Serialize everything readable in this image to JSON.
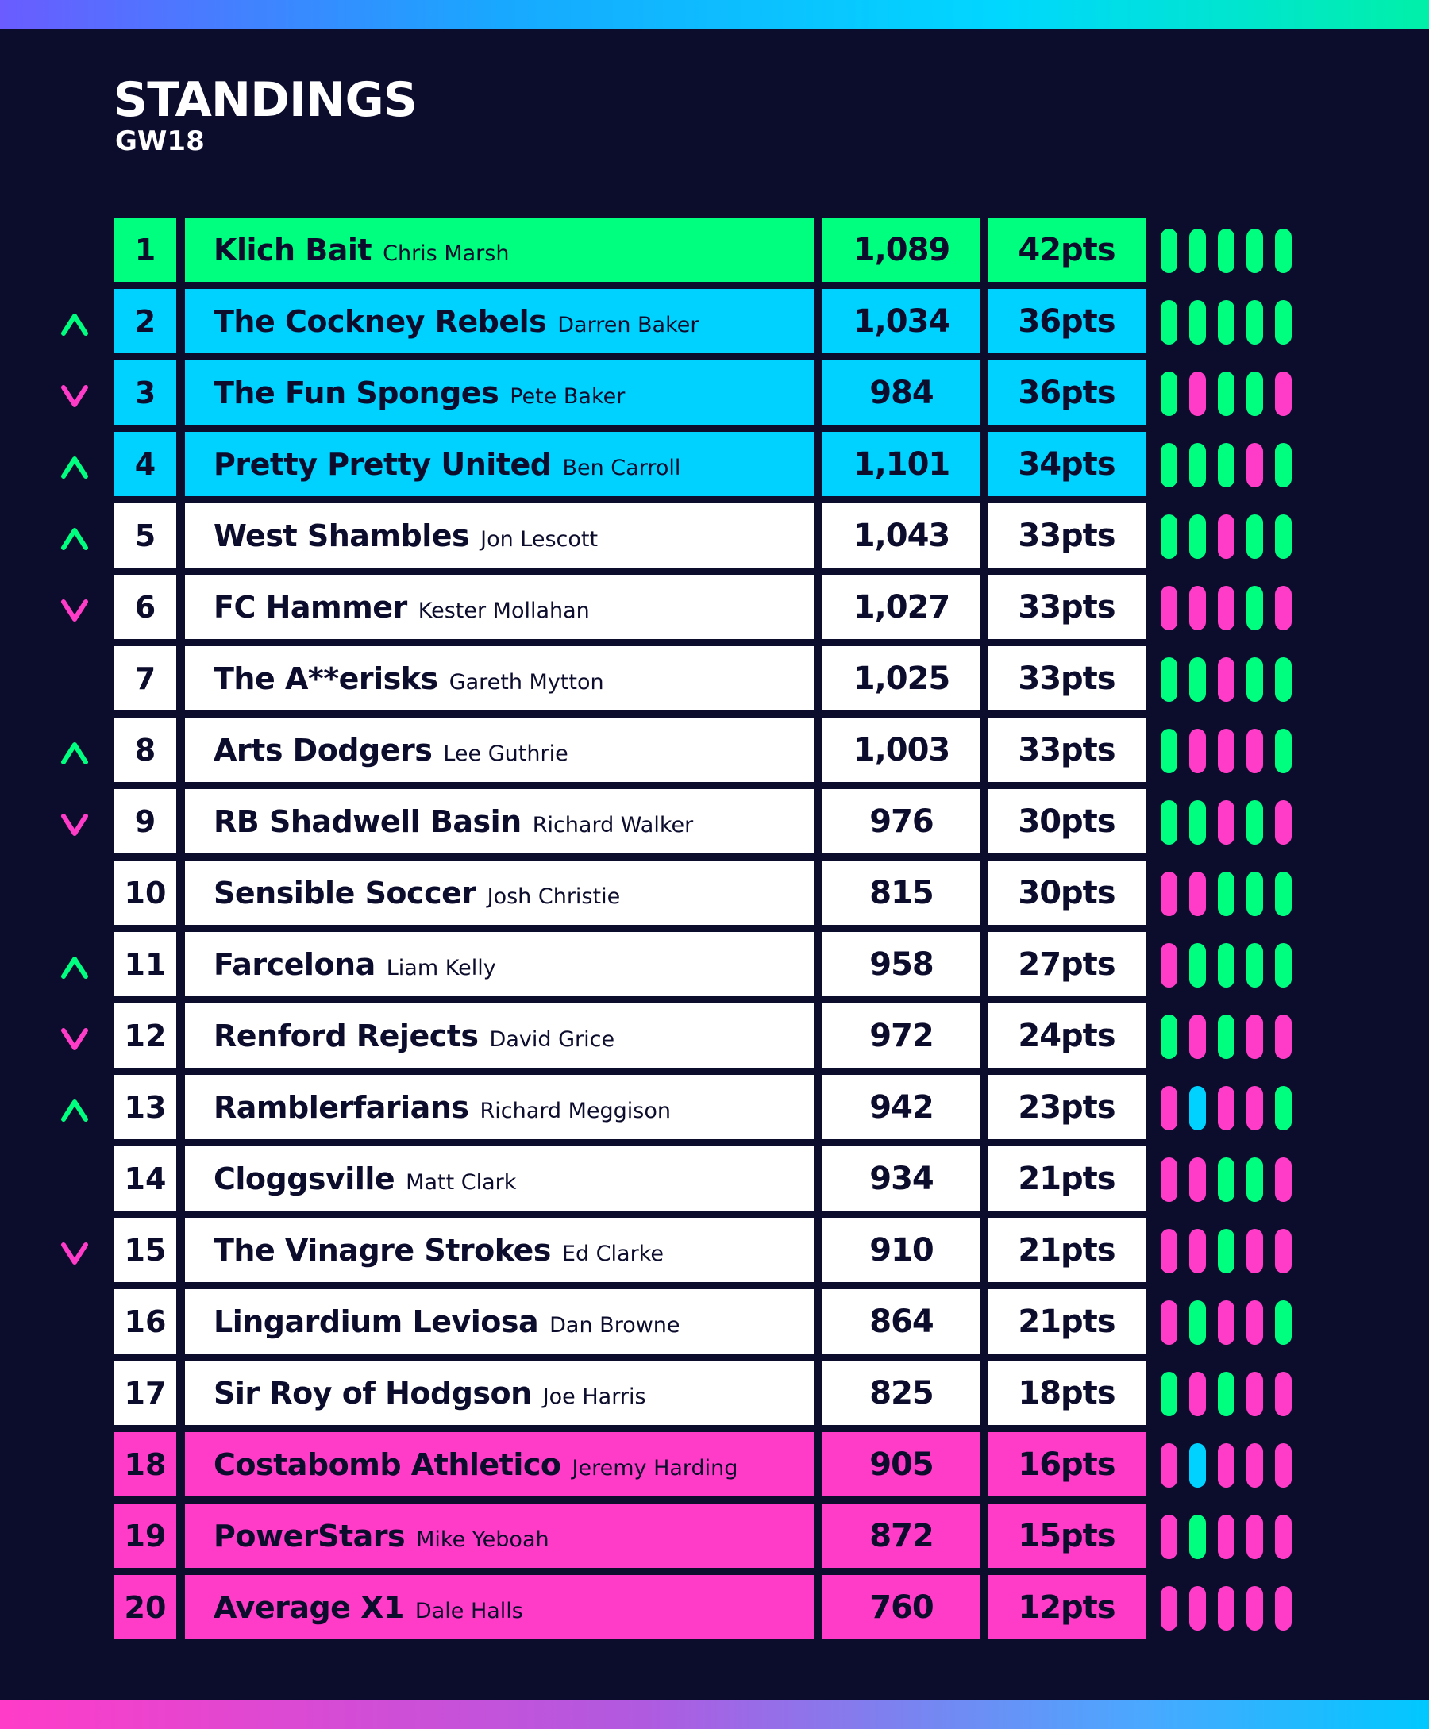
{
  "header": {
    "title": "STANDINGS",
    "subtitle": "GW18"
  },
  "colors": {
    "green": "#00ff7f",
    "blue": "#00d2ff",
    "pink": "#ff3cc8",
    "white": "#ffffff",
    "navy": "#0c0c2d"
  },
  "rows": [
    {
      "pos": "1",
      "team": "Klich Bait",
      "manager": "Chris Marsh",
      "value": "1,089",
      "pts": "42pts",
      "zone": "green",
      "move": "none",
      "form": [
        "W",
        "W",
        "W",
        "W",
        "W"
      ]
    },
    {
      "pos": "2",
      "team": "The Cockney Rebels",
      "manager": "Darren Baker",
      "value": "1,034",
      "pts": "36pts",
      "zone": "blue",
      "move": "up",
      "form": [
        "W",
        "W",
        "W",
        "W",
        "W"
      ]
    },
    {
      "pos": "3",
      "team": "The Fun Sponges",
      "manager": "Pete Baker",
      "value": "984",
      "pts": "36pts",
      "zone": "blue",
      "move": "down",
      "form": [
        "W",
        "L",
        "W",
        "W",
        "L"
      ]
    },
    {
      "pos": "4",
      "team": "Pretty Pretty United",
      "manager": "Ben Carroll",
      "value": "1,101",
      "pts": "34pts",
      "zone": "blue",
      "move": "up",
      "form": [
        "W",
        "W",
        "W",
        "L",
        "W"
      ]
    },
    {
      "pos": "5",
      "team": "West Shambles",
      "manager": "Jon Lescott",
      "value": "1,043",
      "pts": "33pts",
      "zone": "white",
      "move": "up",
      "form": [
        "W",
        "W",
        "L",
        "W",
        "W"
      ]
    },
    {
      "pos": "6",
      "team": "FC Hammer",
      "manager": "Kester Mollahan",
      "value": "1,027",
      "pts": "33pts",
      "zone": "white",
      "move": "down",
      "form": [
        "L",
        "L",
        "L",
        "W",
        "L"
      ]
    },
    {
      "pos": "7",
      "team": "The A**erisks",
      "manager": "Gareth Mytton",
      "value": "1,025",
      "pts": "33pts",
      "zone": "white",
      "move": "none",
      "form": [
        "W",
        "W",
        "L",
        "W",
        "W"
      ]
    },
    {
      "pos": "8",
      "team": "Arts Dodgers",
      "manager": "Lee Guthrie",
      "value": "1,003",
      "pts": "33pts",
      "zone": "white",
      "move": "up",
      "form": [
        "W",
        "L",
        "L",
        "L",
        "W"
      ]
    },
    {
      "pos": "9",
      "team": "RB Shadwell Basin",
      "manager": "Richard Walker",
      "value": "976",
      "pts": "30pts",
      "zone": "white",
      "move": "down",
      "form": [
        "W",
        "W",
        "L",
        "W",
        "L"
      ]
    },
    {
      "pos": "10",
      "team": "Sensible Soccer",
      "manager": "Josh Christie",
      "value": "815",
      "pts": "30pts",
      "zone": "white",
      "move": "none",
      "form": [
        "L",
        "L",
        "W",
        "W",
        "W"
      ]
    },
    {
      "pos": "11",
      "team": "Farcelona",
      "manager": "Liam Kelly",
      "value": "958",
      "pts": "27pts",
      "zone": "white",
      "move": "up",
      "form": [
        "L",
        "W",
        "W",
        "W",
        "W"
      ]
    },
    {
      "pos": "12",
      "team": "Renford Rejects",
      "manager": "David Grice",
      "value": "972",
      "pts": "24pts",
      "zone": "white",
      "move": "down",
      "form": [
        "W",
        "L",
        "W",
        "L",
        "L"
      ]
    },
    {
      "pos": "13",
      "team": "Ramblerfarians",
      "manager": "Richard Meggison",
      "value": "942",
      "pts": "23pts",
      "zone": "white",
      "move": "up",
      "form": [
        "L",
        "D",
        "L",
        "L",
        "W"
      ]
    },
    {
      "pos": "14",
      "team": "Cloggsville",
      "manager": "Matt Clark",
      "value": "934",
      "pts": "21pts",
      "zone": "white",
      "move": "none",
      "form": [
        "L",
        "L",
        "W",
        "W",
        "L"
      ]
    },
    {
      "pos": "15",
      "team": "The Vinagre Strokes",
      "manager": "Ed Clarke",
      "value": "910",
      "pts": "21pts",
      "zone": "white",
      "move": "down",
      "form": [
        "L",
        "L",
        "W",
        "L",
        "L"
      ]
    },
    {
      "pos": "16",
      "team": "Lingardium Leviosa",
      "manager": "Dan Browne",
      "value": "864",
      "pts": "21pts",
      "zone": "white",
      "move": "none",
      "form": [
        "L",
        "W",
        "L",
        "L",
        "W"
      ]
    },
    {
      "pos": "17",
      "team": "Sir Roy of Hodgson",
      "manager": "Joe Harris",
      "value": "825",
      "pts": "18pts",
      "zone": "white",
      "move": "none",
      "form": [
        "W",
        "L",
        "W",
        "L",
        "L"
      ]
    },
    {
      "pos": "18",
      "team": "Costabomb Athletico",
      "manager": "Jeremy Harding",
      "value": "905",
      "pts": "16pts",
      "zone": "pink",
      "move": "none",
      "form": [
        "L",
        "D",
        "L",
        "L",
        "L"
      ]
    },
    {
      "pos": "19",
      "team": "PowerStars",
      "manager": "Mike Yeboah",
      "value": "872",
      "pts": "15pts",
      "zone": "pink",
      "move": "none",
      "form": [
        "L",
        "W",
        "L",
        "L",
        "L"
      ]
    },
    {
      "pos": "20",
      "team": "Average X1",
      "manager": "Dale Halls",
      "value": "760",
      "pts": "12pts",
      "zone": "pink",
      "move": "none",
      "form": [
        "L",
        "L",
        "L",
        "L",
        "L"
      ]
    }
  ]
}
